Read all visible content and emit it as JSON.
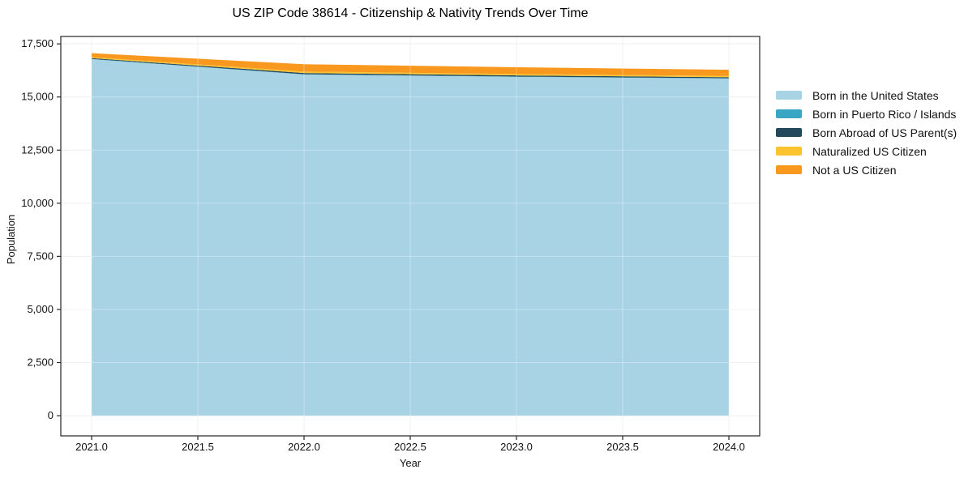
{
  "chart_data": {
    "type": "area",
    "stacked": true,
    "title": "US ZIP Code 38614 - Citizenship & Nativity Trends Over Time",
    "xlabel": "Year",
    "ylabel": "Population",
    "legend_position": "right-outside",
    "grid": true,
    "x": [
      2021,
      2022,
      2023,
      2024
    ],
    "series": [
      {
        "name": "Born in the United States",
        "color": "#a8d3e5",
        "values": [
          16780,
          16060,
          15950,
          15870
        ]
      },
      {
        "name": "Born in Puerto Rico / Islands",
        "color": "#3aa6c3",
        "values": [
          12,
          12,
          12,
          12
        ]
      },
      {
        "name": "Born Abroad of US Parent(s)",
        "color": "#25495c",
        "values": [
          38,
          55,
          55,
          50
        ]
      },
      {
        "name": "Naturalized US Citizen",
        "color": "#fcc330",
        "values": [
          45,
          70,
          65,
          60
        ]
      },
      {
        "name": "Not a US Citizen",
        "color": "#f8981f",
        "values": [
          190,
          345,
          320,
          290
        ]
      }
    ],
    "x_ticks": [
      {
        "v": 2021.0,
        "label": "2021.0"
      },
      {
        "v": 2021.5,
        "label": "2021.5"
      },
      {
        "v": 2022.0,
        "label": "2022.0"
      },
      {
        "v": 2022.5,
        "label": "2022.5"
      },
      {
        "v": 2023.0,
        "label": "2023.0"
      },
      {
        "v": 2023.5,
        "label": "2023.5"
      },
      {
        "v": 2024.0,
        "label": "2024.0"
      }
    ],
    "y_ticks": [
      {
        "v": 0,
        "label": "0"
      },
      {
        "v": 2500,
        "label": "2,500"
      },
      {
        "v": 5000,
        "label": "5,000"
      },
      {
        "v": 7500,
        "label": "7,500"
      },
      {
        "v": 10000,
        "label": "10,000"
      },
      {
        "v": 12500,
        "label": "12,500"
      },
      {
        "v": 15000,
        "label": "15,000"
      },
      {
        "v": 17500,
        "label": "17,500"
      }
    ],
    "xlim": [
      2020.855,
      2024.145
    ],
    "ylim": [
      -950,
      17850
    ]
  },
  "colors": {
    "grid": "#e9e9e9",
    "grid_overlay": "rgba(255,255,255,0.32)",
    "spine": "#262626",
    "tick_text": "#111111",
    "background": "#ffffff"
  }
}
